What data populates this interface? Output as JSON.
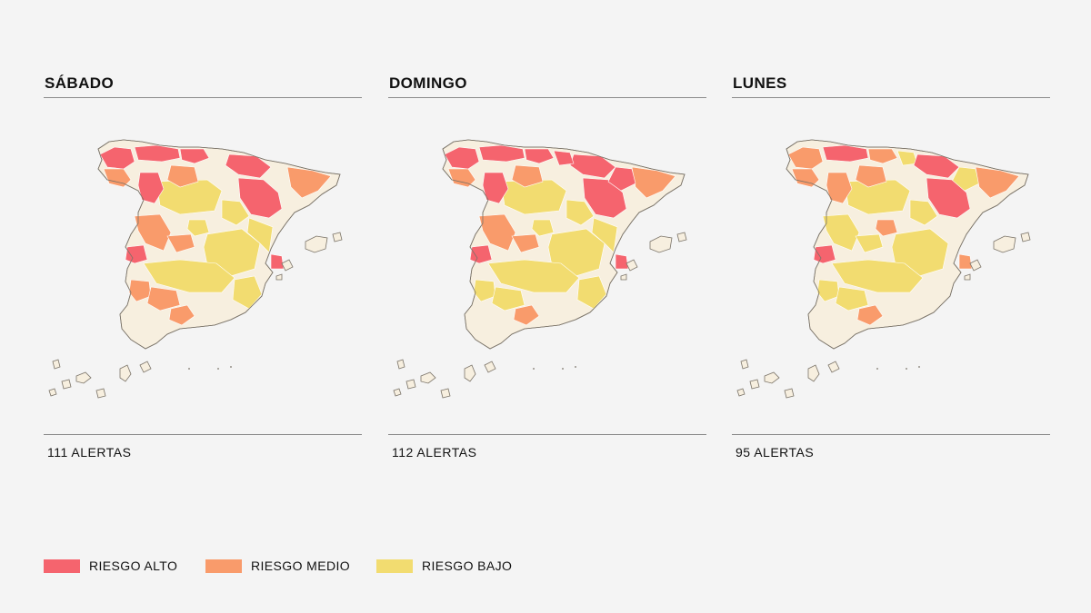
{
  "colors": {
    "alto": "#f5646e",
    "medio": "#f99b6b",
    "bajo": "#f2dc70",
    "sin_riesgo": "#f7efdf",
    "outline": "#7a7368",
    "background": "#f4f4f4"
  },
  "panels": [
    {
      "title": "SÁBADO",
      "alerts": "111 ALERTAS",
      "risk_zones": {
        "alto": [
          "galicia-norte",
          "asturias",
          "cantabria",
          "navarra-aragon-pirineo",
          "zamora-leon",
          "extremadura-oeste",
          "aragon-este",
          "valencia-costa"
        ],
        "medio": [
          "galicia-centro",
          "burgos",
          "cataluna",
          "extremadura",
          "toledo",
          "andalucia-huelva",
          "malaga",
          "sevilla"
        ],
        "bajo": [
          "castilla-leon",
          "castilla-la-mancha",
          "valencia-interior",
          "andalucia-norte",
          "murcia",
          "madrid-sur",
          "aragon-sur"
        ]
      }
    },
    {
      "title": "DOMINGO",
      "alerts": "112 ALERTAS",
      "risk_zones": {
        "alto": [
          "galicia-norte",
          "asturias",
          "cantabria",
          "navarra-aragon-pirineo",
          "zamora-leon",
          "extremadura-oeste",
          "aragon-este",
          "valencia-costa",
          "pais-vasco",
          "cataluna-oeste"
        ],
        "medio": [
          "galicia-centro",
          "burgos",
          "cataluna",
          "extremadura",
          "toledo",
          "malaga"
        ],
        "bajo": [
          "castilla-leon",
          "castilla-la-mancha",
          "valencia-interior",
          "andalucia-norte",
          "murcia",
          "madrid-sur",
          "aragon-sur",
          "andalucia-huelva",
          "sevilla"
        ]
      }
    },
    {
      "title": "LUNES",
      "alerts": "95 ALERTAS",
      "risk_zones": {
        "alto": [
          "asturias",
          "navarra-aragon-pirineo",
          "extremadura-oeste",
          "aragon-este"
        ],
        "medio": [
          "galicia-norte",
          "galicia-centro",
          "cantabria",
          "burgos",
          "cataluna",
          "malaga",
          "madrid-sur",
          "valencia-costa",
          "zamora-leon"
        ],
        "bajo": [
          "castilla-leon",
          "castilla-la-mancha",
          "extremadura",
          "toledo",
          "andalucia-norte",
          "andalucia-huelva",
          "sevilla",
          "aragon-sur",
          "pais-vasco",
          "cataluna-oeste"
        ]
      }
    }
  ],
  "legend": [
    {
      "label": "RIESGO ALTO",
      "color": "#f5646e"
    },
    {
      "label": "RIESGO MEDIO",
      "color": "#f99b6b"
    },
    {
      "label": "RIESGO BAJO",
      "color": "#f2dc70"
    }
  ]
}
